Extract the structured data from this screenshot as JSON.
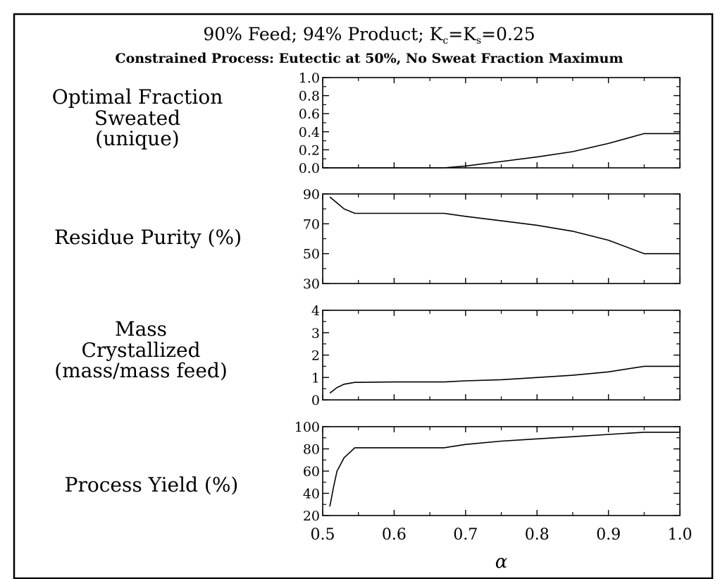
{
  "title_parts": {
    "pre": "90% Feed; 94% Product; K",
    "sub1": "c",
    "mid": "=K",
    "sub2": "s",
    "post": "=0.25"
  },
  "subtitle": "Constrained Process: Eutectic at 50%, No Sweat Fraction Maximum",
  "chart_data": [
    {
      "type": "line",
      "label_lines": [
        "Optimal Fraction",
        "Sweated",
        "(unique)"
      ],
      "ylim": [
        0,
        1
      ],
      "yticks": [
        0,
        0.2,
        0.4,
        0.6,
        0.8,
        1.0
      ],
      "ytick_labels": [
        "0.0",
        "0.2",
        "0.4",
        "0.6",
        "0.8",
        "1.0"
      ],
      "x": [
        0.5,
        0.55,
        0.6,
        0.65,
        0.67,
        0.7,
        0.75,
        0.8,
        0.85,
        0.9,
        0.95,
        1.0
      ],
      "y": [
        0,
        0,
        0,
        0,
        0,
        0.02,
        0.07,
        0.12,
        0.18,
        0.27,
        0.38,
        0.38
      ]
    },
    {
      "type": "line",
      "label_lines": [
        "Residue Purity (%)"
      ],
      "ylim": [
        30,
        90
      ],
      "yticks": [
        30,
        50,
        70,
        90
      ],
      "ytick_labels": [
        "30",
        "50",
        "70",
        "90"
      ],
      "x": [
        0.51,
        0.52,
        0.53,
        0.545,
        0.6,
        0.67,
        0.7,
        0.75,
        0.8,
        0.85,
        0.9,
        0.95,
        1.0
      ],
      "y": [
        88,
        84,
        80,
        77,
        77,
        77,
        75,
        72,
        69,
        65,
        59,
        50,
        50
      ]
    },
    {
      "type": "line",
      "label_lines": [
        "Mass",
        "Crystallized",
        "(mass/mass feed)"
      ],
      "ylim": [
        0,
        4
      ],
      "yticks": [
        0,
        1,
        2,
        3,
        4
      ],
      "ytick_labels": [
        "0",
        "1",
        "2",
        "3",
        "4"
      ],
      "x": [
        0.51,
        0.52,
        0.53,
        0.545,
        0.6,
        0.67,
        0.7,
        0.75,
        0.8,
        0.85,
        0.9,
        0.95,
        1.0
      ],
      "y": [
        0.3,
        0.55,
        0.7,
        0.78,
        0.8,
        0.8,
        0.85,
        0.9,
        1.0,
        1.1,
        1.25,
        1.5,
        1.5
      ]
    },
    {
      "type": "line",
      "label_lines": [
        "Process Yield (%)"
      ],
      "ylim": [
        20,
        100
      ],
      "yticks": [
        20,
        40,
        60,
        80,
        100
      ],
      "ytick_labels": [
        "20",
        "40",
        "60",
        "80",
        "100"
      ],
      "x": [
        0.51,
        0.515,
        0.52,
        0.53,
        0.545,
        0.6,
        0.67,
        0.7,
        0.75,
        0.8,
        0.85,
        0.9,
        0.95,
        1.0
      ],
      "y": [
        28,
        45,
        60,
        72,
        81,
        81,
        81,
        84,
        87,
        89,
        91,
        93,
        95,
        95
      ]
    }
  ],
  "x_axis": {
    "xlim": [
      0.5,
      1.0
    ],
    "ticks": [
      0.5,
      0.6,
      0.7,
      0.8,
      0.9,
      1.0
    ],
    "tick_labels": [
      "0.5",
      "0.6",
      "0.7",
      "0.8",
      "0.9",
      "1.0"
    ],
    "label": "α"
  }
}
